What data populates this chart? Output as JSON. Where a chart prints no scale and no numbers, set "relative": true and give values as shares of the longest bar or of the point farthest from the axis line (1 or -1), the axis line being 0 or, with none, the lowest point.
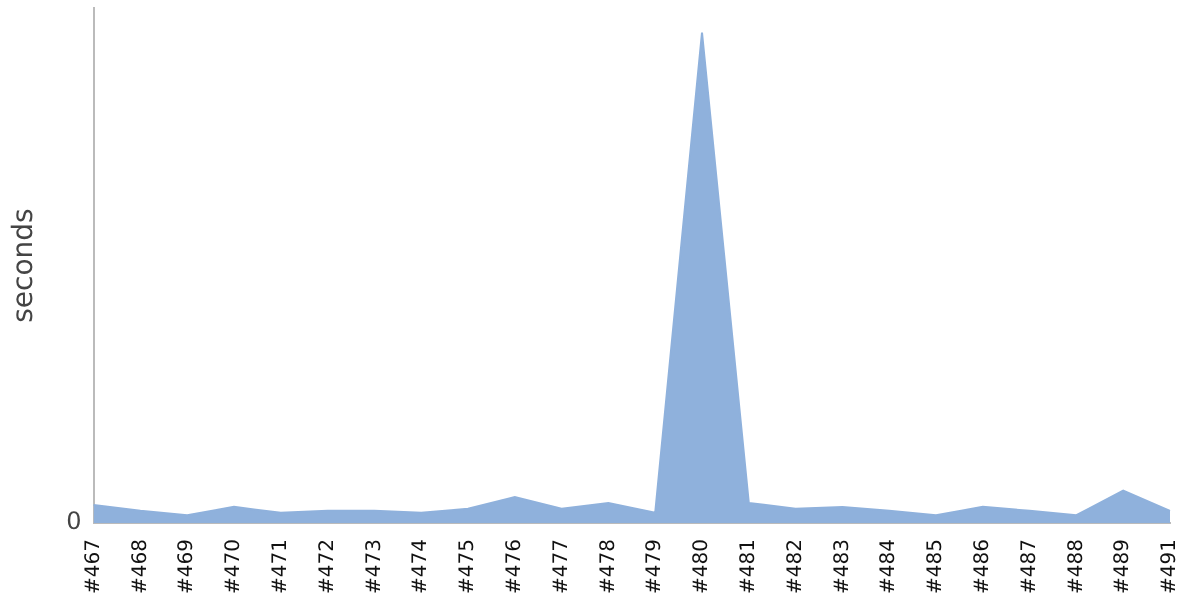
{
  "chart_data": {
    "type": "area",
    "ylabel": "seconds",
    "relative": true,
    "annotations": [
      "0"
    ],
    "grid": false,
    "legend": false,
    "categories": [
      "#467",
      "#468",
      "#469",
      "#470",
      "#471",
      "#472",
      "#473",
      "#474",
      "#475",
      "#476",
      "#477",
      "#478",
      "#479",
      "#480",
      "#481",
      "#482",
      "#483",
      "#484",
      "#485",
      "#486",
      "#487",
      "#488",
      "#489",
      "#491"
    ],
    "series": [
      {
        "color": "#8fb1dc",
        "values": [
          0.037,
          0.025,
          0.016,
          0.033,
          0.021,
          0.025,
          0.025,
          0.021,
          0.029,
          0.053,
          0.029,
          0.041,
          0.021,
          1,
          0.041,
          0.029,
          0.033,
          0.025,
          0.016,
          0.033,
          0.025,
          0.016,
          0.066,
          0.025
        ]
      }
    ]
  }
}
